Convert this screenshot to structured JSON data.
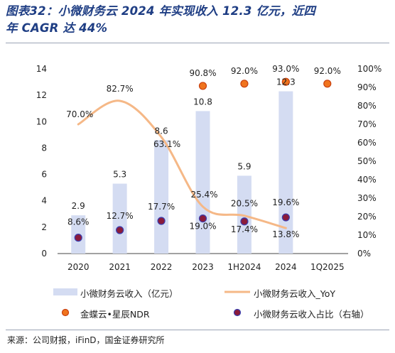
{
  "header": {
    "title_line1": "图表32：小微财务云 2024 年实现收入 12.3 亿元，近四",
    "title_line2": "年 CAGR 达 44%"
  },
  "source": "来源：公司财报，iFinD，国金证券研究所",
  "colors": {
    "bar": "#d4dcf2",
    "yoy_line": "#f5b887",
    "ndr_fill": "#f0741e",
    "ndr_edge": "#c8400f",
    "share_fill": "#8a1b3b",
    "share_edge": "#3a3fb0",
    "title": "#1f3e84"
  },
  "chart_data": {
    "type": "bar",
    "categories": [
      "2020",
      "2021",
      "2022",
      "2023",
      "1H2024",
      "2024",
      "1Q2025"
    ],
    "left_axis": {
      "min": 0,
      "max": 14,
      "ticks": [
        0,
        2,
        4,
        6,
        8,
        10,
        12,
        14
      ]
    },
    "right_axis": {
      "min": 0,
      "max": 100,
      "ticks": [
        "0%",
        "10%",
        "20%",
        "30%",
        "40%",
        "50%",
        "60%",
        "70%",
        "80%",
        "90%",
        "100%"
      ]
    },
    "grid": false,
    "legend_position": "bottom",
    "series": [
      {
        "name": "小微财务云收入（亿元）",
        "kind": "bar",
        "axis": "left",
        "values": [
          2.9,
          5.3,
          8.6,
          10.8,
          5.9,
          12.3,
          null
        ],
        "labels": [
          "2.9",
          "5.3",
          "8.6",
          "10.8",
          "5.9",
          "12.3",
          ""
        ]
      },
      {
        "name": "小微财务云收入_YoY",
        "kind": "line",
        "axis": "right",
        "values": [
          70.0,
          82.7,
          63.1,
          25.4,
          20.5,
          13.8,
          null
        ],
        "labels": [
          "70.0%",
          "82.7%",
          "63.1%",
          "25.4%",
          "20.5%",
          "13.8%",
          ""
        ]
      },
      {
        "name": "金蝶云•星辰NDR",
        "kind": "scatter",
        "axis": "right",
        "values": [
          null,
          null,
          null,
          90.8,
          92.0,
          93.0,
          92.0
        ],
        "labels": [
          "",
          "",
          "",
          "90.8%",
          "92.0%",
          "93.0%",
          "92.0%"
        ]
      },
      {
        "name": "小微财务云收入占比（右轴）",
        "kind": "scatter",
        "axis": "right",
        "values": [
          8.6,
          12.7,
          17.7,
          19.0,
          17.4,
          19.6,
          null
        ],
        "labels": [
          "8.6%",
          "12.7%",
          "17.7%",
          "19.0%",
          "17.4%",
          "19.6%",
          ""
        ]
      }
    ]
  }
}
